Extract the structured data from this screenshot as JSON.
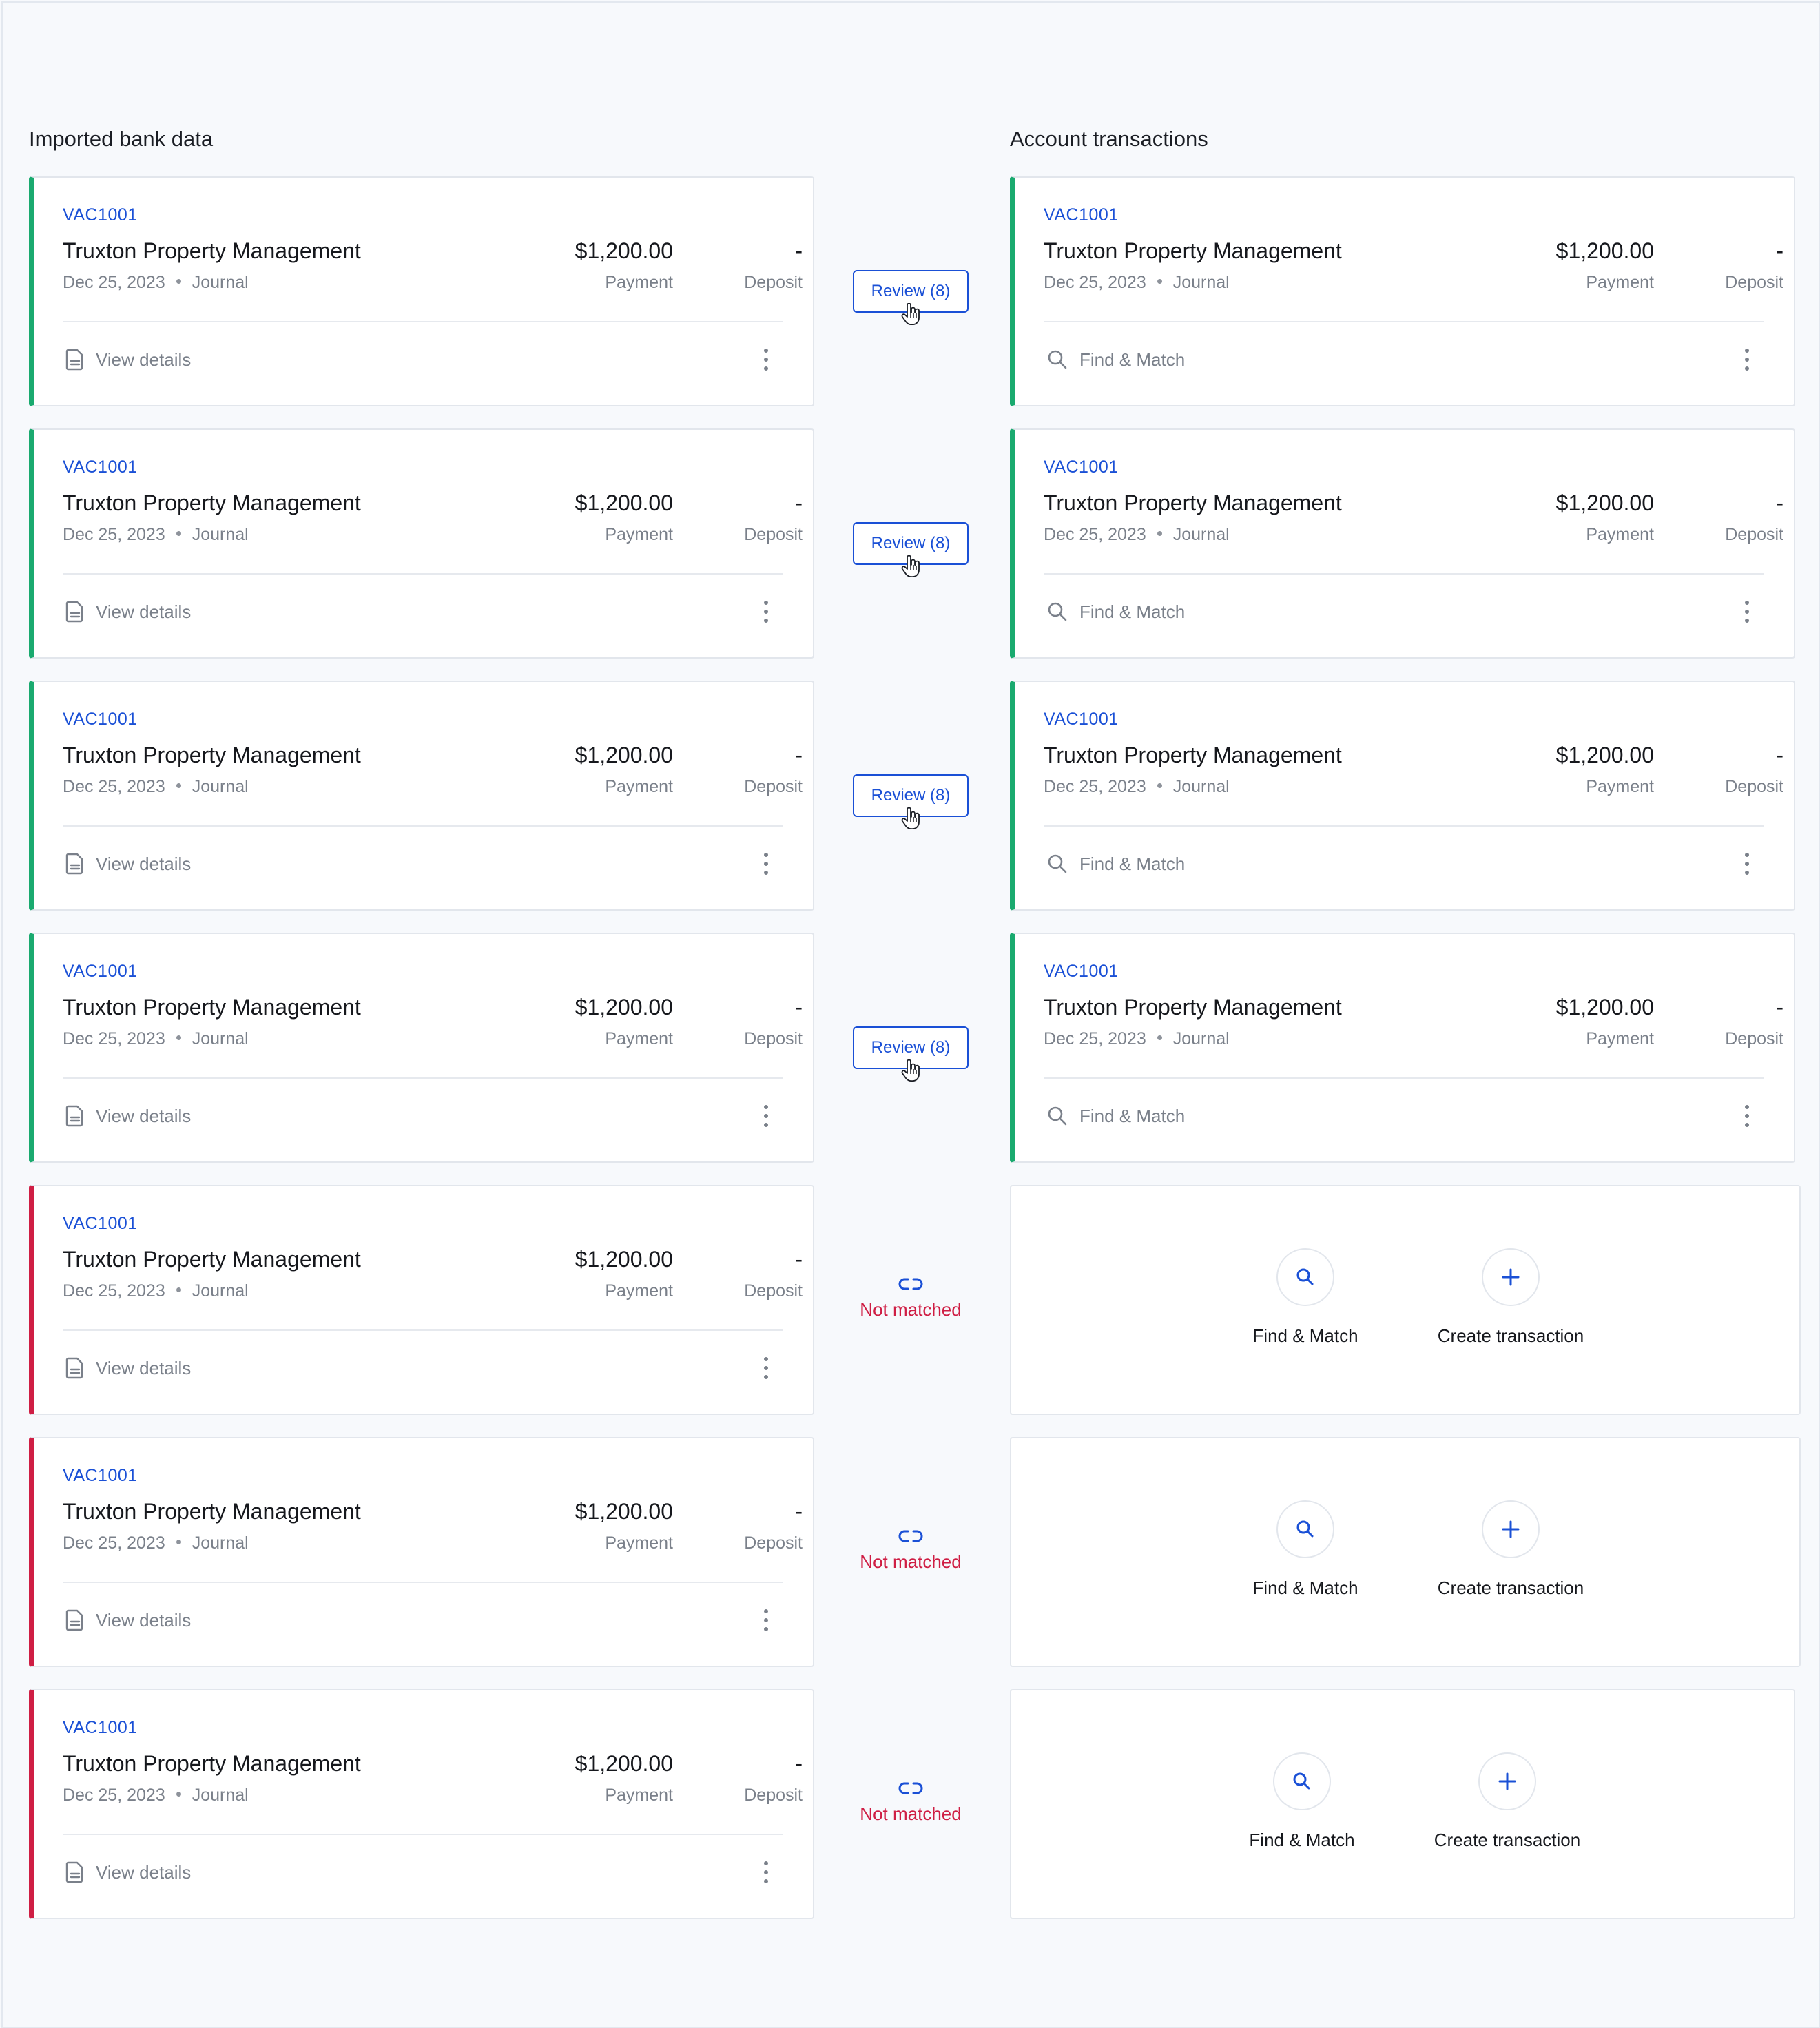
{
  "columns": {
    "left_title": "Imported bank data",
    "right_title": "Account transactions"
  },
  "colors": {
    "accent": "#1a50d6",
    "matched": "#1aaa6f",
    "unmatched": "#cf1e44"
  },
  "bank_rows": [
    {
      "code": "VAC1001",
      "name": "Truxton Property Management",
      "date": "Dec 25, 2023",
      "type": "Journal",
      "amount": "$1,200.00",
      "amount_label": "Payment",
      "deposit": "-",
      "deposit_label": "Deposit",
      "action": "View details",
      "status": "matched"
    },
    {
      "code": "VAC1001",
      "name": "Truxton Property Management",
      "date": "Dec 25, 2023",
      "type": "Journal",
      "amount": "$1,200.00",
      "amount_label": "Payment",
      "deposit": "-",
      "deposit_label": "Deposit",
      "action": "View details",
      "status": "matched"
    },
    {
      "code": "VAC1001",
      "name": "Truxton Property Management",
      "date": "Dec 25, 2023",
      "type": "Journal",
      "amount": "$1,200.00",
      "amount_label": "Payment",
      "deposit": "-",
      "deposit_label": "Deposit",
      "action": "View details",
      "status": "matched"
    },
    {
      "code": "VAC1001",
      "name": "Truxton Property Management",
      "date": "Dec 25, 2023",
      "type": "Journal",
      "amount": "$1,200.00",
      "amount_label": "Payment",
      "deposit": "-",
      "deposit_label": "Deposit",
      "action": "View details",
      "status": "matched"
    },
    {
      "code": "VAC1001",
      "name": "Truxton Property Management",
      "date": "Dec 25, 2023",
      "type": "Journal",
      "amount": "$1,200.00",
      "amount_label": "Payment",
      "deposit": "-",
      "deposit_label": "Deposit",
      "action": "View details",
      "status": "unmatched"
    },
    {
      "code": "VAC1001",
      "name": "Truxton Property Management",
      "date": "Dec 25, 2023",
      "type": "Journal",
      "amount": "$1,200.00",
      "amount_label": "Payment",
      "deposit": "-",
      "deposit_label": "Deposit",
      "action": "View details",
      "status": "unmatched"
    },
    {
      "code": "VAC1001",
      "name": "Truxton Property Management",
      "date": "Dec 25, 2023",
      "type": "Journal",
      "amount": "$1,200.00",
      "amount_label": "Payment",
      "deposit": "-",
      "deposit_label": "Deposit",
      "action": "View details",
      "status": "unmatched"
    }
  ],
  "middle": {
    "review_label": "Review (8)",
    "not_matched_label": "Not matched"
  },
  "account_rows": [
    {
      "code": "VAC1001",
      "name": "Truxton Property Management",
      "date": "Dec 25, 2023",
      "type": "Journal",
      "amount": "$1,200.00",
      "amount_label": "Payment",
      "deposit": "-",
      "deposit_label": "Deposit",
      "action": "Find & Match"
    },
    {
      "code": "VAC1001",
      "name": "Truxton Property Management",
      "date": "Dec 25, 2023",
      "type": "Journal",
      "amount": "$1,200.00",
      "amount_label": "Payment",
      "deposit": "-",
      "deposit_label": "Deposit",
      "action": "Find & Match"
    },
    {
      "code": "VAC1001",
      "name": "Truxton Property Management",
      "date": "Dec 25, 2023",
      "type": "Journal",
      "amount": "$1,200.00",
      "amount_label": "Payment",
      "deposit": "-",
      "deposit_label": "Deposit",
      "action": "Find & Match"
    },
    {
      "code": "VAC1001",
      "name": "Truxton Property Management",
      "date": "Dec 25, 2023",
      "type": "Journal",
      "amount": "$1,200.00",
      "amount_label": "Payment",
      "deposit": "-",
      "deposit_label": "Deposit",
      "action": "Find & Match"
    }
  ],
  "empty_actions": {
    "find_match": "Find & Match",
    "create_transaction": "Create transaction"
  }
}
